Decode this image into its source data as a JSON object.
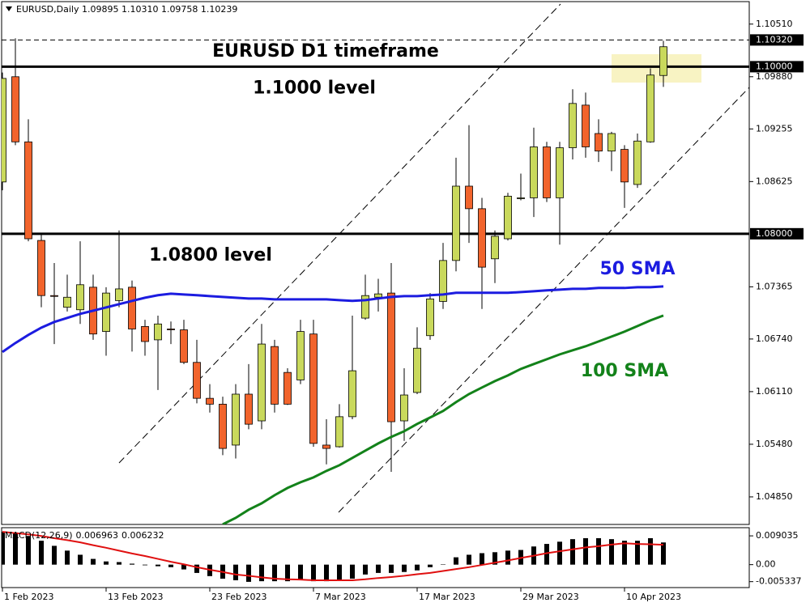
{
  "chart_data": [
    {
      "type": "candlestick",
      "title": "EURUSD,Daily  1.09895 1.10310 1.09758 1.10239",
      "annotations": [
        "EURUSD D1 timeframe"
      ],
      "categories": [
        "1 Feb 2023",
        null,
        null,
        null,
        null,
        null,
        null,
        null,
        "13 Feb 2023",
        null,
        null,
        null,
        null,
        null,
        null,
        null,
        "23 Feb 2023",
        null,
        null,
        null,
        null,
        null,
        null,
        null,
        "7 Mar 2023",
        null,
        null,
        null,
        null,
        null,
        null,
        null,
        "17 Mar 2023",
        null,
        null,
        null,
        null,
        null,
        null,
        null,
        "29 Mar 2023",
        null,
        null,
        null,
        null,
        null,
        null,
        null,
        "10 Apr 2023",
        null,
        null,
        null
      ],
      "open": [
        1.0862,
        1.0988,
        1.091,
        1.0792,
        1.0726,
        1.0712,
        1.0709,
        1.0736,
        1.0683,
        1.072,
        1.0736,
        1.0689,
        1.0673,
        1.0686,
        1.0685,
        1.0646,
        1.0603,
        1.0596,
        1.0547,
        1.0608,
        1.0576,
        1.0665,
        1.0634,
        1.0625,
        1.068,
        1.0547,
        1.0545,
        1.0581,
        1.0699,
        1.0724,
        1.0729,
        1.0576,
        1.061,
        1.0678,
        1.0719,
        1.0768,
        1.0857,
        1.083,
        1.077,
        1.0794,
        1.0842,
        1.0843,
        1.0904,
        1.0843,
        1.0903,
        1.0954,
        1.092,
        1.0899,
        1.0901,
        1.0859,
        1.091,
        1.09895
      ],
      "high": [
        1.0993,
        1.1034,
        1.0937,
        1.08,
        1.0765,
        1.0751,
        1.0791,
        1.0751,
        1.0736,
        1.0804,
        1.0744,
        1.0697,
        1.0702,
        1.0695,
        1.0697,
        1.0673,
        1.062,
        1.0605,
        1.062,
        1.0644,
        1.0692,
        1.0673,
        1.0639,
        1.0697,
        1.0697,
        1.0578,
        1.0596,
        1.0702,
        1.0751,
        1.0746,
        1.0765,
        1.0639,
        1.0688,
        1.0729,
        1.0789,
        1.0891,
        1.093,
        1.0843,
        1.0804,
        1.0849,
        1.0872,
        1.0927,
        1.091,
        1.091,
        1.0973,
        1.0969,
        1.0937,
        1.0922,
        1.0906,
        1.092,
        1.0998,
        1.1031
      ],
      "low": [
        1.0852,
        1.0906,
        1.0791,
        1.0712,
        1.0668,
        1.0707,
        1.0692,
        1.0673,
        1.0654,
        1.0712,
        1.0659,
        1.0654,
        1.0613,
        1.0668,
        1.0644,
        1.0597,
        1.0586,
        1.0535,
        1.0531,
        1.0566,
        1.0566,
        1.0586,
        1.0595,
        1.062,
        1.0545,
        1.0524,
        1.0544,
        1.0578,
        1.0697,
        1.0707,
        1.0515,
        1.0552,
        1.0608,
        1.0673,
        1.071,
        1.0755,
        1.0789,
        1.071,
        1.0741,
        1.0792,
        1.084,
        1.082,
        1.0838,
        1.0787,
        1.0889,
        1.0891,
        1.0886,
        1.0875,
        1.0831,
        1.0855,
        1.0909,
        1.09758
      ],
      "close": [
        1.0986,
        1.091,
        1.0794,
        1.0726,
        1.0725,
        1.0724,
        1.0739,
        1.068,
        1.0729,
        1.0734,
        1.0686,
        1.0671,
        1.0692,
        1.0685,
        1.0646,
        1.0603,
        1.0596,
        1.0543,
        1.0608,
        1.0572,
        1.0668,
        1.0596,
        1.0596,
        1.0683,
        1.0549,
        1.0543,
        1.0581,
        1.0636,
        1.0726,
        1.0728,
        1.0575,
        1.0607,
        1.0663,
        1.0722,
        1.0768,
        1.0857,
        1.083,
        1.076,
        1.0797,
        1.0845,
        1.0843,
        1.0904,
        1.0843,
        1.0903,
        1.0956,
        1.0904,
        1.0899,
        1.092,
        1.0862,
        1.0911,
        1.099,
        1.10239
      ],
      "up_color": "#c9d95c",
      "down_color": "#f2642c",
      "series": [
        {
          "name": "50 SMA",
          "color": "#1c1ce0",
          "values": [
            1.06585,
            1.06692,
            1.06789,
            1.06876,
            1.06944,
            1.06992,
            1.07041,
            1.07079,
            1.07118,
            1.07157,
            1.07196,
            1.07234,
            1.07264,
            1.07283,
            1.07273,
            1.07264,
            1.07254,
            1.07244,
            1.07234,
            1.07225,
            1.07225,
            1.07215,
            1.07215,
            1.07215,
            1.07215,
            1.07215,
            1.07205,
            1.07196,
            1.07205,
            1.07225,
            1.07244,
            1.07254,
            1.07254,
            1.07264,
            1.07273,
            1.07293,
            1.07293,
            1.07293,
            1.07293,
            1.07293,
            1.07302,
            1.07312,
            1.07322,
            1.07331,
            1.07341,
            1.07341,
            1.07351,
            1.07351,
            1.07351,
            1.0736,
            1.0736,
            1.0737
          ]
        },
        {
          "name": "100 SMA",
          "color": "#13821a",
          "values": [
            null,
            null,
            null,
            null,
            null,
            null,
            null,
            null,
            null,
            null,
            null,
            null,
            null,
            null,
            null,
            null,
            null,
            1.04521,
            1.04599,
            1.04696,
            1.04773,
            1.0487,
            1.04957,
            1.05025,
            1.05083,
            1.05161,
            1.05229,
            1.05316,
            1.05403,
            1.0549,
            1.05568,
            1.05636,
            1.05723,
            1.058,
            1.05878,
            1.05984,
            1.06081,
            1.06159,
            1.06236,
            1.06304,
            1.06382,
            1.0644,
            1.06498,
            1.06556,
            1.06605,
            1.06653,
            1.06711,
            1.06769,
            1.06828,
            1.06895,
            1.06963,
            1.07021
          ]
        }
      ],
      "levels": [
        {
          "value": 1.1,
          "label": "1.10000",
          "name": "1.1000 level"
        },
        {
          "value": 1.08,
          "label": "1.08000",
          "name": "1.0800 level"
        }
      ],
      "price_line": {
        "value": 1.1032,
        "label": "1.10320"
      },
      "ylim": [
        1.0452,
        1.1075
      ],
      "yticks": [
        {
          "value": 1.1051,
          "label": "1.10510"
        },
        {
          "value": 1.0988,
          "label": "1.09880"
        },
        1.09255,
        1.08625,
        1.07365,
        {
          "value": 1.0674,
          "label": "1.06740"
        },
        {
          "value": 1.0611,
          "label": "1.06110"
        },
        {
          "value": 1.0548,
          "label": "1.05480"
        },
        {
          "value": 1.0485,
          "label": "1.04850"
        }
      ]
    },
    {
      "type": "macd",
      "title": "MACD(12,26,9)",
      "color": "#000000",
      "values": [
        0.01033,
        0.0101,
        0.009,
        0.0075,
        0.0059,
        0.0044,
        0.0031,
        0.0018,
        0.001,
        0.0008,
        0.0003,
        -0.0002,
        -0.0005,
        -0.0008,
        -0.0015,
        -0.0026,
        -0.0036,
        -0.0044,
        -0.0049,
        -0.0054,
        -0.0052,
        -0.0052,
        -0.0052,
        -0.0049,
        -0.0052,
        -0.0052,
        -0.0049,
        -0.0044,
        -0.0031,
        -0.0026,
        -0.0026,
        -0.0023,
        -0.0018,
        -0.0008,
        0.0001,
        0.0023,
        0.0031,
        0.0036,
        0.0039,
        0.0044,
        0.0046,
        0.0057,
        0.0065,
        0.0072,
        0.008,
        0.0083,
        0.0083,
        0.008,
        0.0075,
        0.0075,
        0.0083,
        0.006963
      ],
      "signal": {
        "color": "#e01010",
        "values": [
          0.0103,
          0.0099,
          0.0095,
          0.009,
          0.0083,
          0.0077,
          0.007,
          0.0061,
          0.0053,
          0.0044,
          0.0035,
          0.0027,
          0.0018,
          0.0009,
          0.0001,
          -0.0008,
          -0.0016,
          -0.0023,
          -0.0031,
          -0.0035,
          -0.004,
          -0.0044,
          -0.0046,
          -0.0047,
          -0.0049,
          -0.0049,
          -0.0049,
          -0.0049,
          -0.0046,
          -0.0042,
          -0.0039,
          -0.0035,
          -0.003,
          -0.0026,
          -0.002,
          -0.0014,
          -0.0008,
          -0.0001,
          0.0006,
          0.0013,
          0.0021,
          0.0028,
          0.0036,
          0.0042,
          0.0048,
          0.0054,
          0.0058,
          0.0063,
          0.0067,
          0.0065,
          0.0064,
          0.006232
        ]
      },
      "ylim": [
        -0.0072,
        0.0116
      ],
      "yticks": [
        0.009035,
        {
          "value": 0,
          "label": "0.00"
        },
        -0.005337
      ]
    }
  ]
}
